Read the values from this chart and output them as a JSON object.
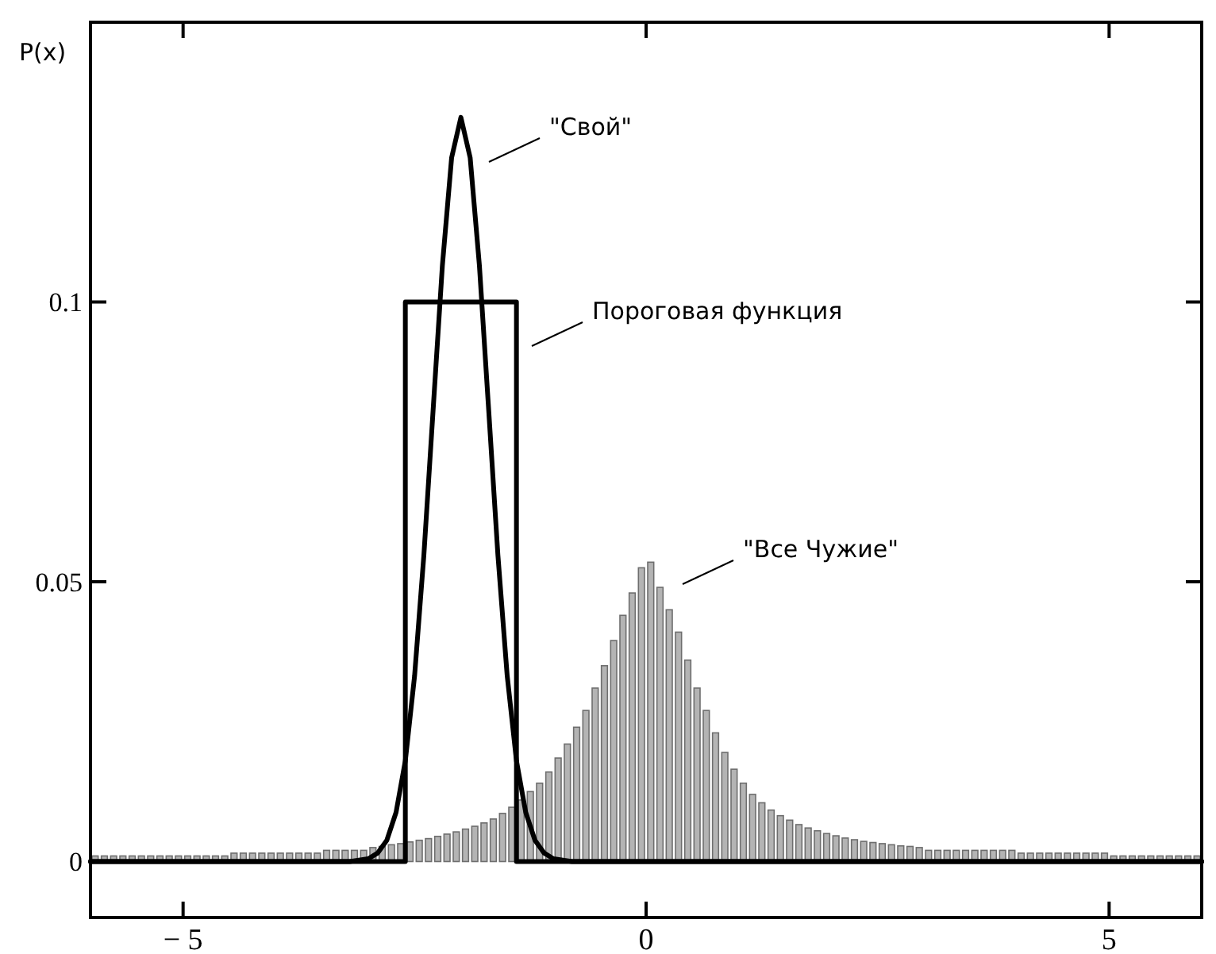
{
  "chart_data": {
    "type": "histogram",
    "ylabel": "P(x)",
    "xlim": [
      -6,
      6
    ],
    "ylim": [
      -0.01,
      0.15
    ],
    "xticks": [
      {
        "value": -5,
        "label": "− 5"
      },
      0,
      5
    ],
    "yticks": [
      0,
      0.05,
      0.1
    ],
    "grid": false,
    "color": "#b4b4b4",
    "bins": [
      -6,
      -5.9,
      -5.8,
      -5.7,
      -5.6,
      -5.5,
      -5.4,
      -5.3,
      -5.2,
      -5.1,
      -5,
      -4.9,
      -4.8,
      -4.7,
      -4.6,
      -4.5,
      -4.4,
      -4.3,
      -4.2,
      -4.1,
      -4,
      -3.9,
      -3.8,
      -3.7,
      -3.6,
      -3.5,
      -3.4,
      -3.3,
      -3.2,
      -3.1,
      -3,
      -2.9,
      -2.8,
      -2.7,
      -2.6,
      -2.5,
      -2.4,
      -2.3,
      -2.2,
      -2.1,
      -2,
      -1.9,
      -1.8,
      -1.7,
      -1.6,
      -1.5,
      -1.4,
      -1.3,
      -1.2,
      -1.1,
      -1,
      -0.9,
      -0.8,
      -0.7,
      -0.6,
      -0.5,
      -0.4,
      -0.3,
      -0.2,
      -0.1,
      0,
      0.1,
      0.2,
      0.3,
      0.4,
      0.5,
      0.6,
      0.7,
      0.8,
      0.9,
      1,
      1.1,
      1.2,
      1.3,
      1.4,
      1.5,
      1.6,
      1.7,
      1.8,
      1.9,
      2,
      2.1,
      2.2,
      2.3,
      2.4,
      2.5,
      2.6,
      2.7,
      2.8,
      2.9,
      3,
      3.1,
      3.2,
      3.3,
      3.4,
      3.5,
      3.6,
      3.7,
      3.8,
      3.9,
      4,
      4.1,
      4.2,
      4.3,
      4.4,
      4.5,
      4.6,
      4.7,
      4.8,
      4.9,
      5,
      5.1,
      5.2,
      5.3,
      5.4,
      5.5,
      5.6,
      5.7,
      5.8,
      5.9,
      6
    ],
    "values": [
      0.001,
      0.001,
      0.001,
      0.001,
      0.001,
      0.001,
      0.001,
      0.001,
      0.001,
      0.001,
      0.001,
      0.001,
      0.001,
      0.001,
      0.001,
      0.0015,
      0.0015,
      0.0015,
      0.0015,
      0.0015,
      0.0015,
      0.0015,
      0.0015,
      0.0015,
      0.0015,
      0.002,
      0.002,
      0.002,
      0.002,
      0.002,
      0.0025,
      0.0027,
      0.003,
      0.0032,
      0.0035,
      0.0038,
      0.0041,
      0.0045,
      0.0049,
      0.0053,
      0.0058,
      0.0063,
      0.0069,
      0.0076,
      0.0086,
      0.0097,
      0.011,
      0.0125,
      0.014,
      0.016,
      0.0185,
      0.021,
      0.024,
      0.027,
      0.031,
      0.035,
      0.0395,
      0.044,
      0.048,
      0.0525,
      0.0535,
      0.049,
      0.045,
      0.041,
      0.036,
      0.031,
      0.027,
      0.023,
      0.0195,
      0.0165,
      0.014,
      0.012,
      0.0105,
      0.0092,
      0.0082,
      0.0074,
      0.0066,
      0.006,
      0.0055,
      0.005,
      0.0046,
      0.0042,
      0.0039,
      0.0036,
      0.0034,
      0.0032,
      0.003,
      0.0028,
      0.0027,
      0.0025,
      0.002,
      0.002,
      0.002,
      0.002,
      0.002,
      0.002,
      0.002,
      0.002,
      0.002,
      0.002,
      0.0015,
      0.0015,
      0.0015,
      0.0015,
      0.0015,
      0.0015,
      0.0015,
      0.0015,
      0.0015,
      0.0015,
      0.001,
      0.001,
      0.001,
      0.001,
      0.001,
      0.001,
      0.001,
      0.001,
      0.001,
      0.001
    ],
    "series": [
      {
        "type": "line",
        "color": "#000000",
        "x": [
          -6,
          -2.6,
          -2.6,
          -1.4,
          -1.4,
          6
        ],
        "values": [
          0,
          0,
          0.1,
          0.1,
          0,
          0
        ]
      },
      {
        "type": "line",
        "color": "#000000",
        "x": [
          -6,
          -3.2,
          -3,
          -2.9,
          -2.8,
          -2.7,
          -2.6,
          -2.5,
          -2.4,
          -2.3,
          -2.2,
          -2.1,
          -2,
          -1.9,
          -1.8,
          -1.7,
          -1.6,
          -1.5,
          -1.4,
          -1.3,
          -1.2,
          -1.1,
          -1,
          -0.8,
          6
        ],
        "values": [
          0,
          0,
          0.0005,
          0.0015,
          0.0038,
          0.0088,
          0.018,
          0.0332,
          0.0547,
          0.0807,
          0.1065,
          0.1258,
          0.133,
          0.1258,
          0.1065,
          0.0807,
          0.0547,
          0.0332,
          0.018,
          0.0088,
          0.0038,
          0.0015,
          0.0005,
          0,
          0
        ]
      }
    ],
    "annotations": [
      "\"Свой\"",
      "Пороговая функция",
      "\"Все Чужие\""
    ]
  }
}
